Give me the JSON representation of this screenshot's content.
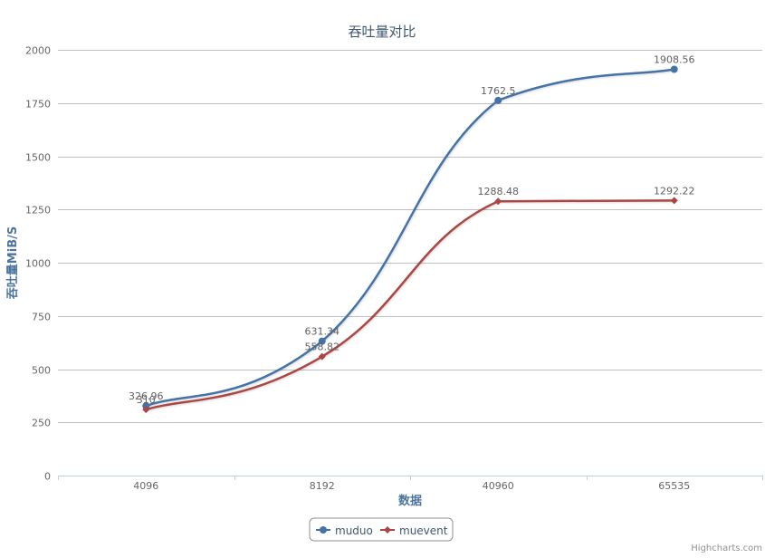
{
  "chart_data": {
    "type": "line",
    "title": "吞吐量对比",
    "xlabel": "数据",
    "ylabel": "吞吐量MiB/S",
    "categories": [
      "4096",
      "8192",
      "40960",
      "65535"
    ],
    "ylim": [
      0,
      2000
    ],
    "yticks": [
      "0",
      "250",
      "500",
      "750",
      "1000",
      "1250",
      "1500",
      "1750",
      "2000"
    ],
    "grid": true,
    "legend_position": "bottom-center",
    "series": [
      {
        "name": "muduo",
        "values": [
          326.96,
          631.34,
          1762.5,
          1908.56
        ],
        "labels": [
          "326.96",
          "631.34",
          "1762.5",
          "1908.56"
        ],
        "color": "#4572A7",
        "marker": "circle"
      },
      {
        "name": "muevent",
        "values": [
          310,
          558.82,
          1288.48,
          1292.22
        ],
        "labels": [
          "310",
          "558.82",
          "1288.48",
          "1292.22"
        ],
        "color": "#AA4643",
        "marker": "diamond"
      }
    ],
    "credits": "Highcharts.com"
  }
}
